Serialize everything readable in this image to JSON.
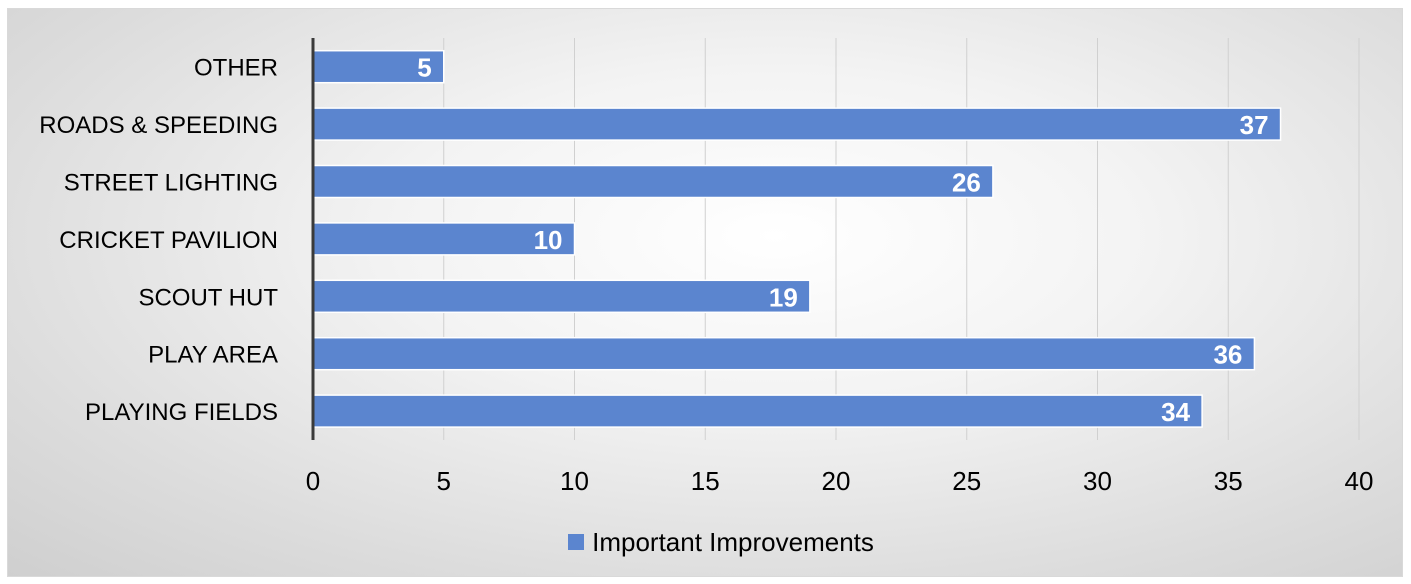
{
  "colors": {
    "bar": "#5b85cf",
    "bar_edge": "#ffffff",
    "gridline": "#d0d0d0",
    "axis": "#3a3a3a",
    "text": "#000000",
    "label_text": "#ffffff"
  },
  "chart_data": {
    "type": "bar",
    "orientation": "horizontal",
    "categories": [
      "OTHER",
      "ROADS & SPEEDING",
      "STREET LIGHTING",
      "CRICKET PAVILION",
      "SCOUT HUT",
      "PLAY AREA",
      "PLAYING FIELDS"
    ],
    "series": [
      {
        "name": "Important Improvements",
        "values": [
          5,
          37,
          26,
          10,
          19,
          36,
          34
        ]
      }
    ],
    "xlim": [
      0,
      40
    ],
    "xticks": [
      "0",
      "5",
      "10",
      "15",
      "20",
      "25",
      "30",
      "35",
      "40"
    ],
    "grid": "vertical",
    "legend_position": "bottom",
    "data_labels": [
      "5",
      "37",
      "26",
      "10",
      "19",
      "36",
      "34"
    ]
  }
}
